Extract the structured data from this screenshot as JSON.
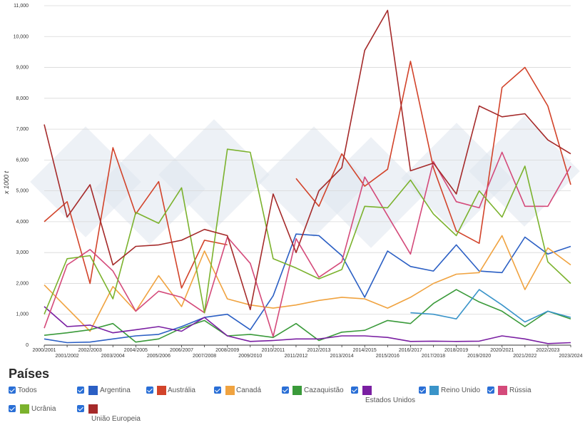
{
  "chart_data": {
    "type": "line",
    "title": "",
    "xlabel": "",
    "ylabel": "x 1000 t",
    "ylim": [
      0,
      11000
    ],
    "yticks": [
      "0",
      "1,000",
      "2,000",
      "3,000",
      "4,000",
      "5,000",
      "6,000",
      "7,000",
      "8,000",
      "9,000",
      "10,000",
      "11,000"
    ],
    "grid": "horizontal",
    "categories": [
      "2000/2001",
      "2001/2002",
      "2002/2003",
      "2003/2004",
      "2004/2005",
      "2005/2006",
      "2006/2007",
      "2007/2008",
      "2008/2009",
      "2009/2010",
      "2010/2011",
      "2011/2012",
      "2012/2013",
      "2013/2014",
      "2014/2015",
      "2015/2016",
      "2016/2017",
      "2017/2018",
      "2018/2019",
      "2019/2020",
      "2020/2021",
      "2021/2022",
      "2022/2023",
      "2023/2024"
    ],
    "series": [
      {
        "name": "Argentina",
        "color": "#2b5fc4",
        "values": [
          200,
          80,
          100,
          200,
          300,
          350,
          600,
          900,
          1000,
          500,
          1600,
          3600,
          3550,
          2900,
          1550,
          3050,
          2550,
          2400,
          3250,
          2400,
          2350,
          3500,
          2950,
          3200
        ]
      },
      {
        "name": "Austrália",
        "color": "#d2432a",
        "values": [
          4000,
          4650,
          2000,
          6400,
          4250,
          5300,
          1850,
          3400,
          3250,
          null,
          null,
          5400,
          4500,
          6200,
          5150,
          5700,
          9200,
          5750,
          3700,
          3300,
          8350,
          9000,
          7750,
          5200
        ]
      },
      {
        "name": "Canadá",
        "color": "#f0a340",
        "values": [
          1950,
          1200,
          450,
          1900,
          1100,
          2250,
          1250,
          3050,
          1500,
          1300,
          1200,
          1300,
          1450,
          1550,
          1500,
          1200,
          1550,
          2000,
          2300,
          2350,
          3550,
          1800,
          3150,
          2600
        ]
      },
      {
        "name": "Cazaquistão",
        "color": "#3a9a3a",
        "values": [
          320,
          400,
          500,
          700,
          100,
          200,
          550,
          800,
          300,
          350,
          250,
          700,
          150,
          420,
          480,
          800,
          700,
          1350,
          1800,
          1400,
          1100,
          600,
          1100,
          850
        ]
      },
      {
        "name": "Estados Unidos",
        "color": "#7a1fa2",
        "values": [
          1250,
          600,
          650,
          400,
          500,
          600,
          450,
          900,
          300,
          120,
          150,
          200,
          200,
          300,
          300,
          250,
          120,
          130,
          120,
          130,
          300,
          200,
          50,
          80
        ]
      },
      {
        "name": "Reino Unido",
        "color": "#3a94c9",
        "values": [
          null,
          null,
          null,
          null,
          null,
          null,
          null,
          null,
          null,
          null,
          null,
          null,
          null,
          null,
          null,
          null,
          1050,
          1000,
          850,
          1800,
          1300,
          750,
          1100,
          900
        ]
      },
      {
        "name": "Rússia",
        "color": "#d44a7a",
        "values": [
          550,
          2600,
          3100,
          2400,
          1100,
          1750,
          1550,
          1050,
          3500,
          2650,
          280,
          3450,
          2200,
          2700,
          5450,
          4200,
          2950,
          5950,
          4650,
          4450,
          6250,
          4500,
          4500,
          5800
        ]
      },
      {
        "name": "Ucrânia",
        "color": "#7bb22d",
        "values": [
          1000,
          2800,
          2900,
          1500,
          4300,
          3950,
          5100,
          1050,
          6350,
          6250,
          2800,
          2500,
          2150,
          2450,
          4500,
          4450,
          5350,
          4250,
          3550,
          5000,
          4150,
          5800,
          2700,
          2000
        ]
      },
      {
        "name": "União Europeia",
        "color": "#a52a2a",
        "values": [
          7150,
          4150,
          5200,
          2600,
          3200,
          3250,
          3400,
          3750,
          3550,
          1150,
          4900,
          3000,
          5000,
          5750,
          9550,
          10850,
          5650,
          5900,
          4900,
          7750,
          7400,
          7500,
          6650,
          6200
        ]
      }
    ]
  },
  "legend": {
    "title": "Países",
    "items": [
      {
        "label": "Todos"
      },
      {
        "label": "Argentina",
        "color": "#2b5fc4"
      },
      {
        "label": "Austrália",
        "color": "#d2432a"
      },
      {
        "label": "Canadá",
        "color": "#f0a340"
      },
      {
        "label": "Cazaquistão",
        "color": "#3a9a3a"
      },
      {
        "label": "Estados Unidos",
        "color": "#7a1fa2"
      },
      {
        "label": "Reino Unido",
        "color": "#3a94c9"
      },
      {
        "label": "Rússia",
        "color": "#d44a7a"
      },
      {
        "label": "Ucrânia",
        "color": "#7bb22d"
      },
      {
        "label": "União Europeia",
        "color": "#a52a2a"
      }
    ]
  }
}
